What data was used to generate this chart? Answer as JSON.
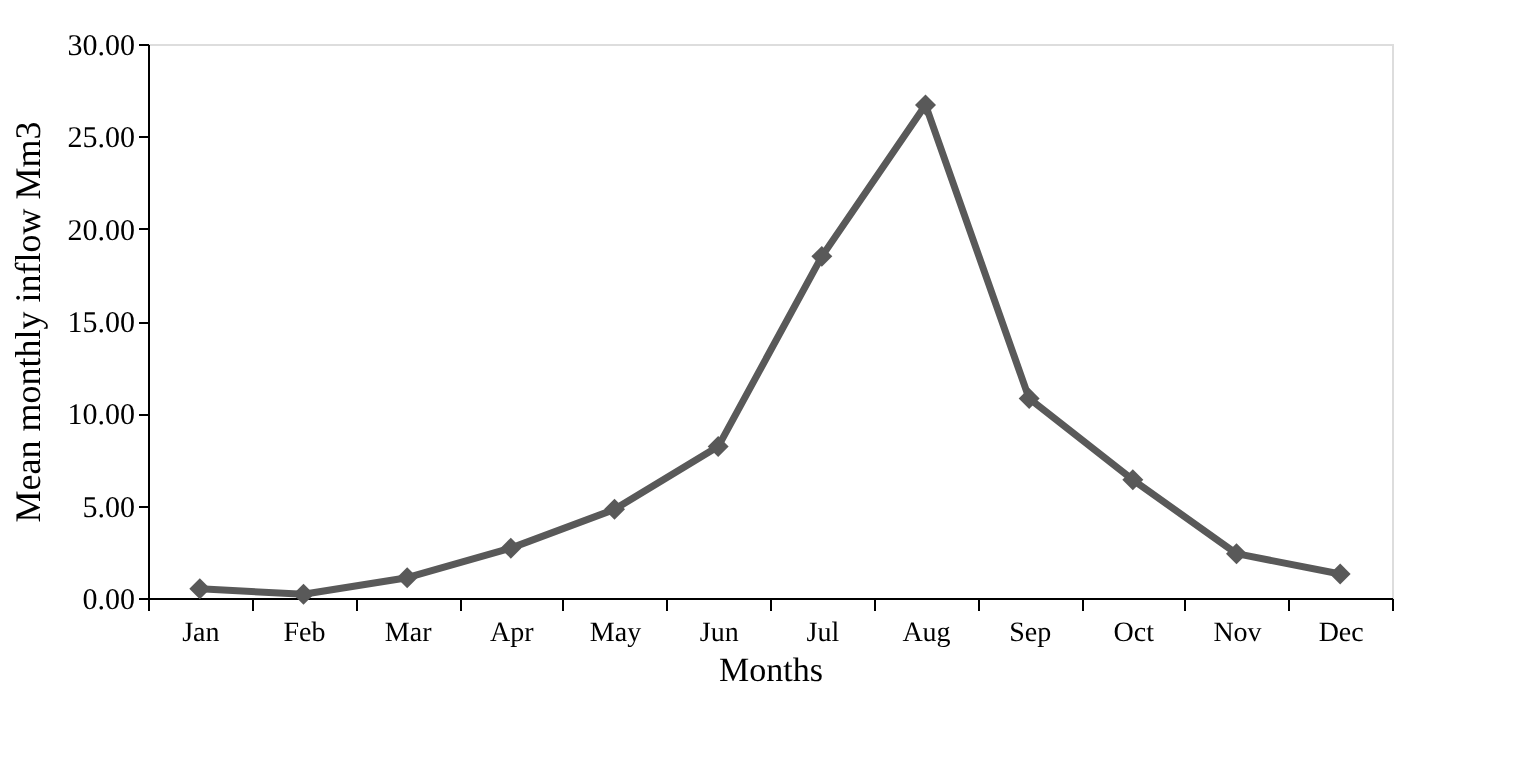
{
  "chart_data": {
    "type": "line",
    "xlabel": "Months",
    "ylabel": "Mean monthly inflow Mm3",
    "categories": [
      "Jan",
      "Feb",
      "Mar",
      "Apr",
      "May",
      "Jun",
      "Jul",
      "Aug",
      "Sep",
      "Oct",
      "Nov",
      "Dec"
    ],
    "series": [
      {
        "color": "#595959",
        "values": [
          0.5,
          0.2,
          1.1,
          2.7,
          4.8,
          8.2,
          18.5,
          26.7,
          10.8,
          6.4,
          2.4,
          1.3
        ]
      }
    ],
    "ylim": [
      0,
      30
    ],
    "yticks": [
      {
        "value": 0,
        "label": "0.00"
      },
      {
        "value": 5,
        "label": "5.00"
      },
      {
        "value": 10,
        "label": "10.00"
      },
      {
        "value": 15,
        "label": "15.00"
      },
      {
        "value": 20,
        "label": "20.00"
      },
      {
        "value": 25,
        "label": "25.00"
      },
      {
        "value": 30,
        "label": "30.00"
      }
    ],
    "grid": false,
    "legend": false,
    "marker": "diamond",
    "line_style": "solid"
  }
}
